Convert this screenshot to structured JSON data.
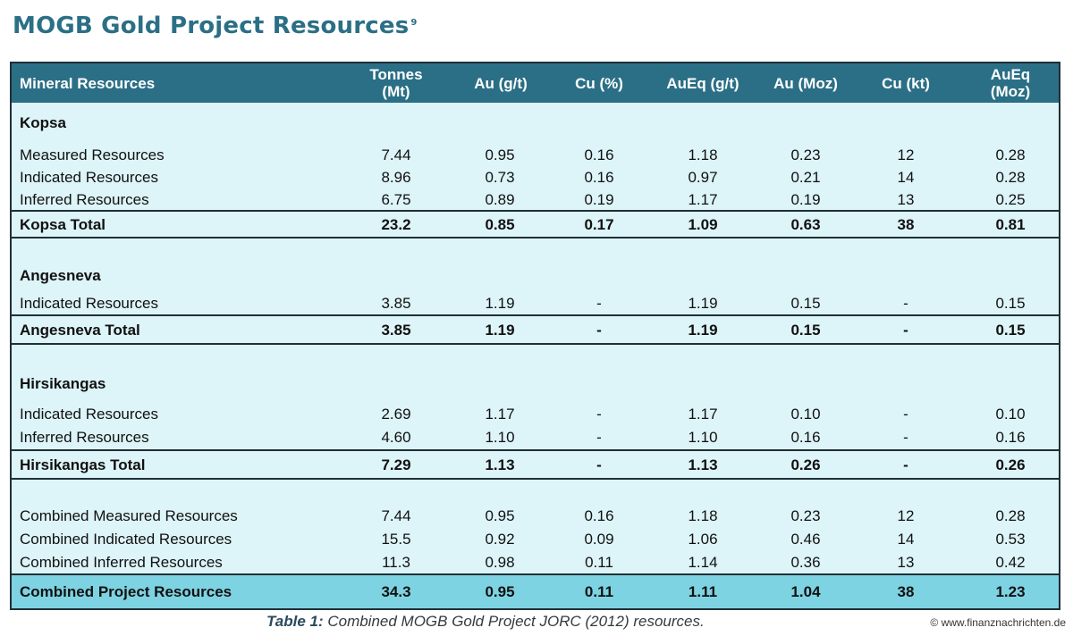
{
  "title": "MOGB Gold Project Resources",
  "title_footnote": "9",
  "header": {
    "c0": "Mineral Resources",
    "c1a": "Tonnes",
    "c1b": "(Mt)",
    "c2": "Au (g/t)",
    "c3": "Cu (%)",
    "c4": "AuEq (g/t)",
    "c5": "Au (Moz)",
    "c6": "Cu (kt)",
    "c7a": "AuEq",
    "c7b": "(Moz)"
  },
  "kopsa": {
    "name": "Kopsa",
    "measured": [
      "Measured Resources",
      "7.44",
      "0.95",
      "0.16",
      "1.18",
      "0.23",
      "12",
      "0.28"
    ],
    "indicated": [
      "Indicated Resources",
      "8.96",
      "0.73",
      "0.16",
      "0.97",
      "0.21",
      "14",
      "0.28"
    ],
    "inferred": [
      "Inferred Resources",
      "6.75",
      "0.89",
      "0.19",
      "1.17",
      "0.19",
      "13",
      "0.25"
    ],
    "total": [
      "Kopsa Total",
      "23.2",
      "0.85",
      "0.17",
      "1.09",
      "0.63",
      "38",
      "0.81"
    ]
  },
  "angesneva": {
    "name": "Angesneva",
    "indicated": [
      "Indicated Resources",
      "3.85",
      "1.19",
      "-",
      "1.19",
      "0.15",
      "-",
      "0.15"
    ],
    "total": [
      "Angesneva Total",
      "3.85",
      "1.19",
      "-",
      "1.19",
      "0.15",
      "-",
      "0.15"
    ]
  },
  "hirsikangas": {
    "name": "Hirsikangas",
    "indicated": [
      "Indicated Resources",
      "2.69",
      "1.17",
      "-",
      "1.17",
      "0.10",
      "-",
      "0.10"
    ],
    "inferred": [
      "Inferred Resources",
      "4.60",
      "1.10",
      "-",
      "1.10",
      "0.16",
      "-",
      "0.16"
    ],
    "total": [
      "Hirsikangas Total",
      "7.29",
      "1.13",
      "-",
      "1.13",
      "0.26",
      "-",
      "0.26"
    ]
  },
  "combined": {
    "measured": [
      "Combined Measured Resources",
      "7.44",
      "0.95",
      "0.16",
      "1.18",
      "0.23",
      "12",
      "0.28"
    ],
    "indicated": [
      "Combined Indicated Resources",
      "15.5",
      "0.92",
      "0.09",
      "1.06",
      "0.46",
      "14",
      "0.53"
    ],
    "inferred": [
      "Combined Inferred Resources",
      "11.3",
      "0.98",
      "0.11",
      "1.14",
      "0.36",
      "13",
      "0.42"
    ],
    "total": [
      "Combined Project Resources",
      "34.3",
      "0.95",
      "0.11",
      "1.11",
      "1.04",
      "38",
      "1.23"
    ]
  },
  "caption": {
    "label": "Table 1:",
    "text": " Combined MOGB Gold Project JORC (2012) resources."
  },
  "credit": "© www.finanznachrichten.de"
}
